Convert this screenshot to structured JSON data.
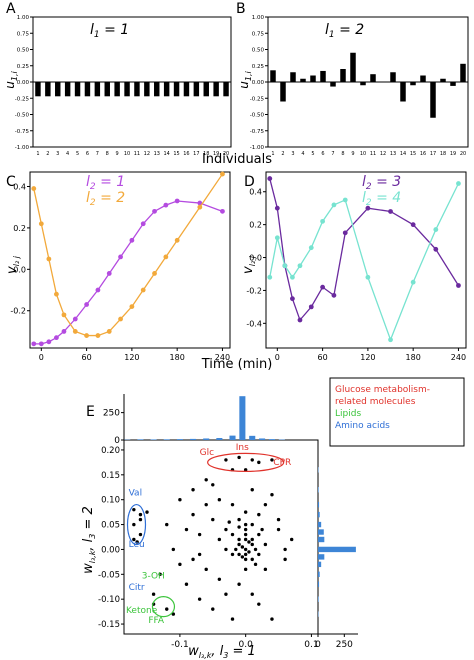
{
  "chart_data": [
    {
      "panel": "A",
      "type": "bar",
      "annotation": "l1 = 1",
      "ylabel": "u_{1,i}",
      "xlabel": "Individuals",
      "categories": [
        "1",
        "2",
        "3",
        "4",
        "5",
        "6",
        "7",
        "8",
        "9",
        "10",
        "11",
        "12",
        "13",
        "14",
        "15",
        "16",
        "17",
        "18",
        "19",
        "20"
      ],
      "values": [
        -0.22,
        -0.22,
        -0.22,
        -0.22,
        -0.22,
        -0.22,
        -0.22,
        -0.22,
        -0.22,
        -0.22,
        -0.22,
        -0.22,
        -0.22,
        -0.22,
        -0.22,
        -0.22,
        -0.22,
        -0.22,
        -0.22,
        -0.22
      ],
      "ylim": [
        -1.0,
        1.0
      ],
      "yticks": [
        "1.00",
        "0.75",
        "0.50",
        "0.25",
        "0.00",
        "-0.25",
        "-0.50",
        "-0.75",
        "-1.00"
      ],
      "color": "#000000"
    },
    {
      "panel": "B",
      "type": "bar",
      "annotation": "l1 = 2",
      "ylabel": "u_{1,i}",
      "xlabel": "Individuals",
      "categories": [
        "1",
        "2",
        "3",
        "4",
        "5",
        "6",
        "7",
        "8",
        "9",
        "10",
        "11",
        "12",
        "13",
        "14",
        "15",
        "16",
        "17",
        "18",
        "19",
        "20"
      ],
      "values": [
        0.18,
        -0.3,
        0.15,
        0.05,
        0.1,
        0.17,
        -0.07,
        0.2,
        0.45,
        -0.05,
        0.12,
        0.0,
        0.15,
        -0.3,
        -0.05,
        0.1,
        -0.55,
        0.05,
        -0.06,
        0.28
      ],
      "ylim": [
        -1.0,
        1.0
      ],
      "yticks": [
        "1.00",
        "0.75",
        "0.50",
        "0.25",
        "0.00",
        "-0.25",
        "-0.50",
        "-0.75",
        "-1.00"
      ],
      "color": "#000000"
    },
    {
      "panel": "C",
      "type": "line",
      "ylabel": "v_{l2 j}",
      "xlabel": "Time (min)",
      "xticks": [
        "0",
        "60",
        "120",
        "180",
        "240"
      ],
      "yticks": [
        "0.4",
        "0.2",
        "0.0",
        "-0.2"
      ],
      "xlim": [
        -15,
        250
      ],
      "ylim": [
        -0.38,
        0.47
      ],
      "series": [
        {
          "name": "l2 = 1",
          "color": "#b44be0",
          "x": [
            -10,
            0,
            10,
            20,
            30,
            45,
            60,
            75,
            90,
            105,
            120,
            135,
            150,
            165,
            180,
            210,
            240
          ],
          "y": [
            -0.36,
            -0.36,
            -0.35,
            -0.33,
            -0.3,
            -0.24,
            -0.17,
            -0.1,
            -0.02,
            0.06,
            0.14,
            0.22,
            0.28,
            0.31,
            0.33,
            0.32,
            0.28
          ]
        },
        {
          "name": "l2 = 2",
          "color": "#f2a93b",
          "x": [
            -10,
            0,
            10,
            20,
            30,
            45,
            60,
            75,
            90,
            105,
            120,
            135,
            150,
            165,
            180,
            210,
            240
          ],
          "y": [
            0.39,
            0.22,
            0.05,
            -0.12,
            -0.22,
            -0.3,
            -0.32,
            -0.32,
            -0.3,
            -0.24,
            -0.18,
            -0.1,
            -0.02,
            0.06,
            0.14,
            0.3,
            0.46
          ]
        }
      ]
    },
    {
      "panel": "D",
      "type": "line",
      "ylabel": "v_{l2 j}",
      "xlabel": "Time (min)",
      "xticks": [
        "0",
        "60",
        "120",
        "180",
        "240"
      ],
      "yticks": [
        "0.4",
        "0.2",
        "0.0",
        "-0.2",
        "-0.4"
      ],
      "xlim": [
        -15,
        250
      ],
      "ylim": [
        -0.55,
        0.52
      ],
      "series": [
        {
          "name": "l2 = 3",
          "color": "#6a2a9e",
          "x": [
            -10,
            0,
            10,
            20,
            30,
            45,
            60,
            75,
            90,
            120,
            150,
            180,
            210,
            240
          ],
          "y": [
            0.48,
            0.3,
            -0.05,
            -0.25,
            -0.38,
            -0.3,
            -0.18,
            -0.23,
            0.15,
            0.3,
            0.28,
            0.2,
            0.05,
            -0.17
          ]
        },
        {
          "name": "l2 = 4",
          "color": "#77e3d0",
          "x": [
            -10,
            0,
            10,
            20,
            30,
            45,
            60,
            75,
            90,
            120,
            150,
            180,
            210,
            240
          ],
          "y": [
            -0.12,
            0.12,
            -0.05,
            -0.12,
            -0.05,
            0.06,
            0.22,
            0.32,
            0.35,
            -0.12,
            -0.5,
            -0.15,
            0.17,
            0.45
          ]
        }
      ]
    },
    {
      "panel": "E",
      "type": "scatter",
      "xlabel": "w_{l3,k}, l3 = 1",
      "ylabel": "w_{l3,k}, l3 = 2",
      "xticks": [
        "-0.1",
        "0.0",
        "0.1"
      ],
      "yticks": [
        "0.20",
        "0.15",
        "0.10",
        "0.05",
        "0.00",
        "-0.05",
        "-0.10",
        "-0.15"
      ],
      "xlim": [
        -0.185,
        0.11
      ],
      "ylim": [
        -0.17,
        0.22
      ],
      "legend": [
        {
          "label": "Glucose metabolism-related molecules",
          "color": "#e0322b"
        },
        {
          "label": "Lipids",
          "color": "#3cc43c"
        },
        {
          "label": "Amino acids",
          "color": "#2f6fd6"
        }
      ],
      "annotations": [
        {
          "text": "Glc",
          "color": "#e0322b"
        },
        {
          "text": "Ins",
          "color": "#e0322b"
        },
        {
          "text": "CPR",
          "color": "#e0322b"
        },
        {
          "text": "Val",
          "color": "#2f6fd6"
        },
        {
          "text": "Leu",
          "color": "#2f6fd6"
        },
        {
          "text": "Citr",
          "color": "#2f6fd6"
        },
        {
          "text": "3-OH",
          "color": "#3cc43c"
        },
        {
          "text": "Ketone",
          "color": "#3cc43c"
        },
        {
          "text": "FFA",
          "color": "#3cc43c"
        }
      ],
      "top_hist": {
        "ticks": [
          "250",
          "0"
        ],
        "ylim": [
          0,
          420
        ]
      },
      "right_hist": {
        "ticks": [
          "0",
          "250"
        ],
        "xlim": [
          0,
          380
        ]
      },
      "points": [
        [
          -0.03,
          0.18
        ],
        [
          -0.01,
          0.185
        ],
        [
          0.01,
          0.18
        ],
        [
          0.02,
          0.175
        ],
        [
          0.04,
          0.18
        ],
        [
          0.0,
          0.16
        ],
        [
          -0.02,
          0.16
        ],
        [
          -0.17,
          0.08
        ],
        [
          -0.16,
          0.07
        ],
        [
          -0.17,
          0.05
        ],
        [
          -0.16,
          0.03
        ],
        [
          -0.17,
          0.02
        ],
        [
          -0.16,
          0.06
        ],
        [
          -0.165,
          0.015
        ],
        [
          -0.15,
          0.075
        ],
        [
          -0.1,
          0.1
        ],
        [
          -0.08,
          0.12
        ],
        [
          -0.06,
          0.14
        ],
        [
          -0.05,
          0.13
        ],
        [
          -0.12,
          0.05
        ],
        [
          -0.09,
          0.04
        ],
        [
          -0.07,
          0.03
        ],
        [
          -0.05,
          0.06
        ],
        [
          -0.04,
          0.02
        ],
        [
          -0.03,
          0.04
        ],
        [
          -0.11,
          0.0
        ],
        [
          -0.08,
          -0.02
        ],
        [
          -0.06,
          -0.04
        ],
        [
          -0.04,
          -0.06
        ],
        [
          -0.1,
          -0.03
        ],
        [
          -0.13,
          -0.05
        ],
        [
          -0.14,
          -0.09
        ],
        [
          -0.14,
          -0.11
        ],
        [
          -0.12,
          -0.12
        ],
        [
          -0.11,
          -0.13
        ],
        [
          -0.09,
          -0.07
        ],
        [
          -0.07,
          -0.1
        ],
        [
          -0.05,
          -0.12
        ],
        [
          -0.03,
          -0.09
        ],
        [
          -0.02,
          -0.14
        ],
        [
          -0.01,
          -0.07
        ],
        [
          0.01,
          -0.09
        ],
        [
          0.03,
          -0.04
        ],
        [
          0.02,
          -0.11
        ],
        [
          0.04,
          -0.14
        ],
        [
          0.0,
          0.05
        ],
        [
          0.0,
          0.0
        ],
        [
          -0.01,
          0.01
        ],
        [
          0.01,
          0.02
        ],
        [
          0.0,
          -0.01
        ],
        [
          -0.005,
          0.005
        ],
        [
          0.005,
          -0.005
        ],
        [
          0.01,
          0.01
        ],
        [
          -0.01,
          -0.01
        ],
        [
          0.0,
          0.02
        ],
        [
          0.015,
          0.0
        ],
        [
          -0.015,
          0.0
        ],
        [
          0.0,
          -0.02
        ],
        [
          0.02,
          0.03
        ],
        [
          -0.02,
          0.03
        ],
        [
          0.0,
          0.03
        ],
        [
          0.01,
          -0.02
        ],
        [
          -0.01,
          0.02
        ],
        [
          0.005,
          0.015
        ],
        [
          -0.005,
          -0.015
        ],
        [
          0.02,
          -0.01
        ],
        [
          -0.02,
          -0.01
        ],
        [
          0.0,
          0.04
        ],
        [
          0.01,
          0.05
        ],
        [
          -0.01,
          0.06
        ],
        [
          0.03,
          0.01
        ],
        [
          -0.03,
          0.0
        ],
        [
          0.0,
          -0.04
        ],
        [
          0.02,
          0.07
        ],
        [
          0.03,
          0.09
        ],
        [
          -0.02,
          0.09
        ],
        [
          0.05,
          0.04
        ],
        [
          0.06,
          0.0
        ],
        [
          0.07,
          0.02
        ],
        [
          -0.06,
          0.09
        ],
        [
          -0.08,
          0.07
        ],
        [
          0.04,
          0.11
        ],
        [
          0.01,
          0.12
        ],
        [
          -0.04,
          0.1
        ],
        [
          -0.07,
          -0.01
        ],
        [
          0.06,
          -0.02
        ],
        [
          0.05,
          0.06
        ],
        [
          0.0,
          0.075
        ],
        [
          -0.01,
          0.045
        ],
        [
          0.015,
          -0.03
        ],
        [
          -0.025,
          0.055
        ],
        [
          0.025,
          0.04
        ]
      ]
    }
  ],
  "panel_labels": [
    "A",
    "B",
    "C",
    "D",
    "E"
  ],
  "axis_titles": {
    "individuals": "Individuals",
    "time": "Time (min)"
  },
  "styles": {
    "axis_color": "#000000",
    "hist_color": "#3d85d6",
    "ellipse_red": "#e0322b",
    "ellipse_blue": "#2f6fd6",
    "ellipse_green": "#3cc43c"
  }
}
